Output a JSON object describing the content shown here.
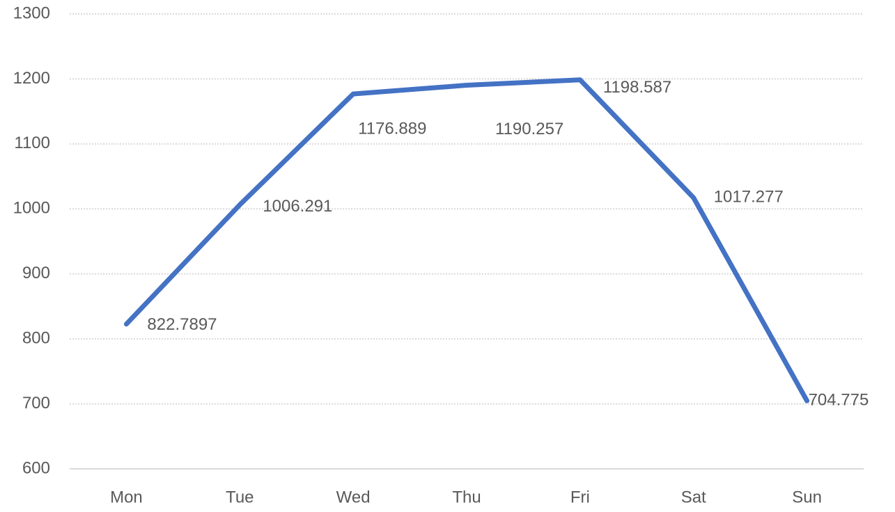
{
  "chart_data": {
    "type": "line",
    "categories": [
      "Mon",
      "Tue",
      "Wed",
      "Thu",
      "Fri",
      "Sat",
      "Sun"
    ],
    "series": [
      {
        "color": "#4472c4",
        "values": [
          822.7897,
          1006.291,
          1176.889,
          1190.257,
          1198.587,
          1017.277,
          704.775
        ]
      }
    ],
    "ylim": [
      600,
      1300
    ],
    "yticks": [
      600,
      700,
      800,
      900,
      1000,
      1100,
      1200,
      1300
    ],
    "grid": true
  }
}
